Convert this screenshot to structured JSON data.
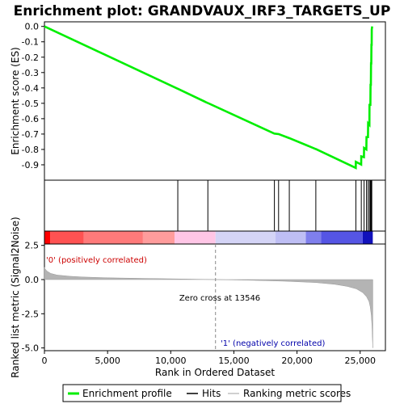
{
  "chart_data": {
    "type": "line",
    "title": "Enrichment plot: GRANDVAUX_IRF3_TARGETS_UP",
    "xlabel": "Rank in Ordered Dataset",
    "xlim": [
      0,
      27000
    ],
    "x_ticks": [
      0,
      5000,
      10000,
      15000,
      20000,
      25000
    ],
    "x_tick_labels": [
      "0",
      "5,000",
      "10,000",
      "15,000",
      "20,000",
      "25,000"
    ],
    "es_panel": {
      "ylabel": "Enrichment score (ES)",
      "ylim": [
        -1.0,
        0.03
      ],
      "y_ticks": [
        0.0,
        -0.1,
        -0.2,
        -0.3,
        -0.4,
        -0.5,
        -0.6,
        -0.7,
        -0.8,
        -0.9
      ],
      "y_tick_labels": [
        "0.0",
        "-0.1",
        "-0.2",
        "-0.3",
        "-0.4",
        "-0.5",
        "-0.6",
        "-0.7",
        "-0.8",
        "-0.9"
      ],
      "series": [
        {
          "name": "Enrichment profile",
          "color": "#00ee00",
          "x": [
            0,
            10550,
            10560,
            12930,
            12940,
            18200,
            18210,
            18530,
            18540,
            19380,
            19390,
            21480,
            21490,
            24650,
            24660,
            25080,
            25090,
            25300,
            25310,
            25490,
            25500,
            25620,
            25630,
            25730,
            25740,
            25810,
            25820,
            25850,
            25860,
            25880,
            25890,
            25910,
            25920,
            25950
          ],
          "y": [
            0.0,
            -0.405,
            -0.405,
            -0.498,
            -0.498,
            -0.697,
            -0.697,
            -0.7,
            -0.7,
            -0.726,
            -0.726,
            -0.797,
            -0.797,
            -0.92,
            -0.88,
            -0.898,
            -0.845,
            -0.85,
            -0.79,
            -0.8,
            -0.72,
            -0.72,
            -0.63,
            -0.64,
            -0.51,
            -0.51,
            -0.38,
            -0.38,
            -0.24,
            -0.24,
            -0.12,
            -0.12,
            -0.02,
            0.0
          ]
        }
      ]
    },
    "hits": {
      "name": "Hits",
      "positions": [
        10560,
        12940,
        18210,
        18540,
        19390,
        21490,
        24660,
        25090,
        25310,
        25500,
        25630,
        25740,
        25820,
        25860,
        25890,
        25920
      ]
    },
    "color_bar": {
      "segments": [
        {
          "from": 0,
          "to": 450,
          "color": "#ff0000"
        },
        {
          "from": 450,
          "to": 3100,
          "color": "#ff5252"
        },
        {
          "from": 3100,
          "to": 7800,
          "color": "#ff7a7a"
        },
        {
          "from": 7800,
          "to": 10300,
          "color": "#ff9c9c"
        },
        {
          "from": 10300,
          "to": 13546,
          "color": "#ffc6e6"
        },
        {
          "from": 13546,
          "to": 18300,
          "color": "#d4d4f6"
        },
        {
          "from": 18300,
          "to": 20700,
          "color": "#bebef4"
        },
        {
          "from": 20700,
          "to": 21900,
          "color": "#7f7fec"
        },
        {
          "from": 21900,
          "to": 25200,
          "color": "#5555e4"
        },
        {
          "from": 25200,
          "to": 26000,
          "color": "#1111bb"
        }
      ]
    },
    "metric_panel": {
      "ylabel": "Ranked list metric (Signal2Noise)",
      "ylim": [
        -5.2,
        2.6
      ],
      "y_ticks": [
        2.5,
        0.0,
        -2.5,
        -5.0
      ],
      "y_tick_labels": [
        "2.5",
        "0.0",
        "-2.5",
        "-5.0"
      ],
      "series": [
        {
          "name": "Ranking metric scores",
          "color": "#c0c0c0",
          "x": [
            0,
            50,
            200,
            500,
            1000,
            2000,
            3000,
            5000,
            8000,
            11000,
            13546,
            16000,
            19000,
            21500,
            23000,
            24000,
            24700,
            25200,
            25500,
            25700,
            25800,
            25880,
            25940,
            25970,
            26000
          ],
          "y": [
            0.9,
            0.78,
            0.62,
            0.45,
            0.33,
            0.24,
            0.19,
            0.13,
            0.08,
            0.04,
            0.0,
            -0.04,
            -0.12,
            -0.22,
            -0.35,
            -0.5,
            -0.68,
            -0.95,
            -1.25,
            -1.6,
            -2.0,
            -2.6,
            -3.4,
            -4.3,
            -5.0
          ]
        }
      ],
      "positive_label": "'0' (positively correlated)",
      "negative_label": "'1' (negatively correlated)",
      "positive_color": "#cc0000",
      "negative_color": "#0000aa",
      "zero_cross_rank": 13546,
      "zero_cross_label": "Zero cross at 13546"
    },
    "legend": {
      "placement": "bottom",
      "entries": [
        "Enrichment profile",
        "Hits",
        "Ranking metric scores"
      ]
    }
  }
}
